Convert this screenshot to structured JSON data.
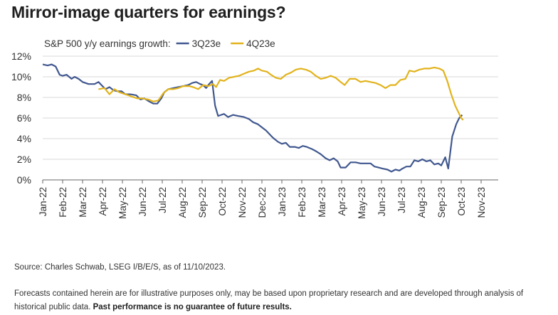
{
  "title": "Mirror-image quarters for earnings?",
  "source": "Source: Charles Schwab, LSEG I/B/E/S, as of 11/10/2023.",
  "disclaimer": {
    "text": "Forecasts contained herein are for illustrative purposes only, may be based upon proprietary research and are developed through analysis of historical public data.",
    "bold": "Past performance is no guarantee of future results."
  },
  "chart_data": {
    "type": "line",
    "legend_title": "S&P 500 y/y earnings growth:",
    "legend_position": "top-left",
    "y_ticks": [
      "0%",
      "2%",
      "4%",
      "6%",
      "8%",
      "10%",
      "12%"
    ],
    "ylim": [
      0,
      12
    ],
    "grid": "horizontal",
    "x_labels": [
      "Jan-22",
      "Feb-22",
      "Mar-22",
      "Apr-22",
      "May-22",
      "Jun-22",
      "Jul-22",
      "Aug-22",
      "Sep-22",
      "Oct-22",
      "Nov-22",
      "Dec-22",
      "Jan-23",
      "Feb-23",
      "Mar-23",
      "Apr-23",
      "May-23",
      "Jun-23",
      "Jul-23",
      "Aug-23",
      "Sep-23",
      "Oct-23",
      "Nov-23"
    ],
    "series": [
      {
        "name": "3Q23e",
        "color": "#41588f",
        "points": [
          [
            0.0,
            11.2
          ],
          [
            0.25,
            11.1
          ],
          [
            0.45,
            11.2
          ],
          [
            0.65,
            11.0
          ],
          [
            0.85,
            10.2
          ],
          [
            1.0,
            10.1
          ],
          [
            1.2,
            10.2
          ],
          [
            1.45,
            9.8
          ],
          [
            1.6,
            10.0
          ],
          [
            1.8,
            9.8
          ],
          [
            2.0,
            9.5
          ],
          [
            2.3,
            9.3
          ],
          [
            2.6,
            9.3
          ],
          [
            2.8,
            9.5
          ],
          [
            3.0,
            9.1
          ],
          [
            3.15,
            8.8
          ],
          [
            3.35,
            9.0
          ],
          [
            3.55,
            8.7
          ],
          [
            3.75,
            8.6
          ],
          [
            3.95,
            8.6
          ],
          [
            4.15,
            8.3
          ],
          [
            4.4,
            8.3
          ],
          [
            4.7,
            8.2
          ],
          [
            4.9,
            7.8
          ],
          [
            5.1,
            7.9
          ],
          [
            5.35,
            7.6
          ],
          [
            5.55,
            7.4
          ],
          [
            5.75,
            7.4
          ],
          [
            5.95,
            7.9
          ],
          [
            6.1,
            8.5
          ],
          [
            6.3,
            8.8
          ],
          [
            6.55,
            8.9
          ],
          [
            6.8,
            9.0
          ],
          [
            7.05,
            9.1
          ],
          [
            7.3,
            9.2
          ],
          [
            7.5,
            9.4
          ],
          [
            7.7,
            9.5
          ],
          [
            7.9,
            9.3
          ],
          [
            8.05,
            9.2
          ],
          [
            8.2,
            8.9
          ],
          [
            8.35,
            9.3
          ],
          [
            8.5,
            9.6
          ],
          [
            8.65,
            7.2
          ],
          [
            8.8,
            6.2
          ],
          [
            8.95,
            6.3
          ],
          [
            9.1,
            6.4
          ],
          [
            9.3,
            6.1
          ],
          [
            9.55,
            6.3
          ],
          [
            9.8,
            6.2
          ],
          [
            10.1,
            6.1
          ],
          [
            10.35,
            5.9
          ],
          [
            10.55,
            5.6
          ],
          [
            10.8,
            5.4
          ],
          [
            11.0,
            5.1
          ],
          [
            11.2,
            4.8
          ],
          [
            11.35,
            4.5
          ],
          [
            11.55,
            4.1
          ],
          [
            11.8,
            3.7
          ],
          [
            12.0,
            3.5
          ],
          [
            12.2,
            3.6
          ],
          [
            12.4,
            3.2
          ],
          [
            12.65,
            3.2
          ],
          [
            12.85,
            3.1
          ],
          [
            13.05,
            3.3
          ],
          [
            13.25,
            3.2
          ],
          [
            13.5,
            3.0
          ],
          [
            13.7,
            2.8
          ],
          [
            13.95,
            2.5
          ],
          [
            14.2,
            2.1
          ],
          [
            14.4,
            1.9
          ],
          [
            14.6,
            2.1
          ],
          [
            14.8,
            1.8
          ],
          [
            14.95,
            1.2
          ],
          [
            15.2,
            1.2
          ],
          [
            15.45,
            1.7
          ],
          [
            15.7,
            1.7
          ],
          [
            15.95,
            1.6
          ],
          [
            16.2,
            1.6
          ],
          [
            16.45,
            1.6
          ],
          [
            16.65,
            1.3
          ],
          [
            16.85,
            1.2
          ],
          [
            17.05,
            1.1
          ],
          [
            17.3,
            1.0
          ],
          [
            17.5,
            0.8
          ],
          [
            17.7,
            1.0
          ],
          [
            17.9,
            0.9
          ],
          [
            18.05,
            1.1
          ],
          [
            18.25,
            1.3
          ],
          [
            18.45,
            1.3
          ],
          [
            18.65,
            1.9
          ],
          [
            18.85,
            1.8
          ],
          [
            19.05,
            2.0
          ],
          [
            19.25,
            1.8
          ],
          [
            19.45,
            1.9
          ],
          [
            19.65,
            1.5
          ],
          [
            19.85,
            1.6
          ],
          [
            20.0,
            1.4
          ],
          [
            20.2,
            2.2
          ],
          [
            20.35,
            1.1
          ],
          [
            20.55,
            4.2
          ],
          [
            20.75,
            5.4
          ],
          [
            20.9,
            6.0
          ],
          [
            21.05,
            6.3
          ]
        ]
      },
      {
        "name": "4Q23e",
        "color": "#e2b31c",
        "points": [
          [
            2.8,
            8.8
          ],
          [
            3.1,
            8.9
          ],
          [
            3.35,
            8.3
          ],
          [
            3.6,
            8.8
          ],
          [
            3.85,
            8.5
          ],
          [
            4.15,
            8.3
          ],
          [
            4.45,
            8.1
          ],
          [
            4.75,
            7.9
          ],
          [
            5.0,
            7.9
          ],
          [
            5.3,
            7.8
          ],
          [
            5.55,
            7.6
          ],
          [
            5.8,
            7.7
          ],
          [
            6.05,
            8.4
          ],
          [
            6.3,
            8.8
          ],
          [
            6.55,
            8.8
          ],
          [
            6.8,
            8.9
          ],
          [
            7.05,
            9.1
          ],
          [
            7.35,
            9.1
          ],
          [
            7.55,
            9.0
          ],
          [
            7.8,
            8.8
          ],
          [
            8.05,
            9.2
          ],
          [
            8.3,
            9.1
          ],
          [
            8.55,
            9.3
          ],
          [
            8.7,
            9.0
          ],
          [
            8.9,
            9.7
          ],
          [
            9.1,
            9.6
          ],
          [
            9.35,
            9.9
          ],
          [
            9.6,
            10.0
          ],
          [
            9.85,
            10.1
          ],
          [
            10.1,
            10.3
          ],
          [
            10.35,
            10.5
          ],
          [
            10.6,
            10.6
          ],
          [
            10.8,
            10.8
          ],
          [
            11.0,
            10.6
          ],
          [
            11.25,
            10.5
          ],
          [
            11.45,
            10.2
          ],
          [
            11.7,
            9.9
          ],
          [
            11.95,
            9.8
          ],
          [
            12.2,
            10.2
          ],
          [
            12.45,
            10.4
          ],
          [
            12.7,
            10.7
          ],
          [
            12.95,
            10.8
          ],
          [
            13.2,
            10.7
          ],
          [
            13.45,
            10.5
          ],
          [
            13.7,
            10.1
          ],
          [
            13.95,
            9.8
          ],
          [
            14.2,
            9.9
          ],
          [
            14.45,
            10.1
          ],
          [
            14.7,
            9.9
          ],
          [
            14.95,
            9.5
          ],
          [
            15.15,
            9.2
          ],
          [
            15.4,
            9.8
          ],
          [
            15.7,
            9.8
          ],
          [
            15.95,
            9.5
          ],
          [
            16.2,
            9.6
          ],
          [
            16.45,
            9.5
          ],
          [
            16.7,
            9.4
          ],
          [
            16.95,
            9.2
          ],
          [
            17.2,
            8.9
          ],
          [
            17.45,
            9.2
          ],
          [
            17.7,
            9.2
          ],
          [
            17.95,
            9.7
          ],
          [
            18.2,
            9.8
          ],
          [
            18.4,
            10.6
          ],
          [
            18.65,
            10.5
          ],
          [
            18.9,
            10.7
          ],
          [
            19.15,
            10.8
          ],
          [
            19.4,
            10.8
          ],
          [
            19.65,
            10.9
          ],
          [
            19.9,
            10.8
          ],
          [
            20.1,
            10.6
          ],
          [
            20.3,
            9.6
          ],
          [
            20.5,
            8.3
          ],
          [
            20.7,
            7.2
          ],
          [
            20.85,
            6.6
          ],
          [
            21.0,
            6.0
          ],
          [
            21.1,
            5.8
          ]
        ]
      }
    ]
  }
}
